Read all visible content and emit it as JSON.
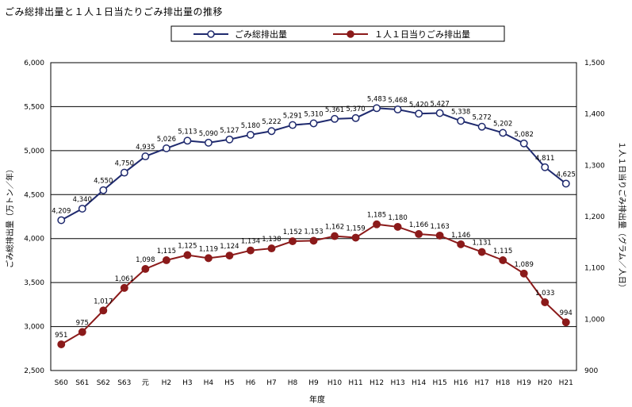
{
  "chart_data": {
    "type": "line",
    "title": "ごみ総排出量と１人１日当たりごみ排出量の推移",
    "xlabel": "年度",
    "ylabel_left": "ごみ総排出量（万トン／年）",
    "ylabel_right": "１人１日当りごみ排出量（グラム／人日）",
    "categories": [
      "S60",
      "S61",
      "S62",
      "S63",
      "元",
      "H2",
      "H3",
      "H4",
      "H5",
      "H6",
      "H7",
      "H8",
      "H9",
      "H10",
      "H11",
      "H12",
      "H13",
      "H14",
      "H15",
      "H16",
      "H17",
      "H18",
      "H19",
      "H20",
      "H21"
    ],
    "ylim_left": [
      2500,
      6000
    ],
    "ylim_right": [
      900,
      1500
    ],
    "yticks_left": [
      "2,500",
      "3,000",
      "3,500",
      "4,000",
      "4,500",
      "5,000",
      "5,500",
      "6,000"
    ],
    "yticks_right": [
      "900",
      "1,000",
      "1,100",
      "1,200",
      "1,300",
      "1,400",
      "1,500"
    ],
    "grid_lines_left": [
      3000,
      3500,
      4000,
      4500,
      5000,
      5500
    ],
    "legend_position": "top-center",
    "series": [
      {
        "name": "ごみ総排出量",
        "axis": "left",
        "marker": "open-circle",
        "color": "#1f2a6e",
        "values": [
          4209,
          4340,
          4550,
          4750,
          4935,
          5026,
          5113,
          5090,
          5127,
          5180,
          5222,
          5291,
          5310,
          5361,
          5370,
          5483,
          5468,
          5420,
          5427,
          5338,
          5272,
          5202,
          5082,
          4811,
          4625
        ],
        "labels": [
          "4,209",
          "4,340",
          "4,550",
          "4,750",
          "4,935",
          "5,026",
          "5,113",
          "5,090",
          "5,127",
          "5,180",
          "5,222",
          "5,291",
          "5,310",
          "5,361",
          "5,370",
          "5,483",
          "5,468",
          "5,420",
          "5,427",
          "5,338",
          "5,272",
          "5,202",
          "5,082",
          "4,811",
          "4,625"
        ]
      },
      {
        "name": "１人１日当りごみ排出量",
        "axis": "right",
        "marker": "filled-circle",
        "color": "#8b1a1a",
        "values": [
          951,
          975,
          1017,
          1061,
          1098,
          1115,
          1125,
          1119,
          1124,
          1134,
          1138,
          1152,
          1153,
          1162,
          1159,
          1185,
          1180,
          1166,
          1163,
          1146,
          1131,
          1115,
          1089,
          1033,
          994
        ],
        "labels": [
          "951",
          "975",
          "1,017",
          "1,061",
          "1,098",
          "1,115",
          "1,125",
          "1,119",
          "1,124",
          "1,134",
          "1,138",
          "1,152",
          "1,153",
          "1,162",
          "1,159",
          "1,185",
          "1,180",
          "1,166",
          "1,163",
          "1,146",
          "1,131",
          "1,115",
          "1,089",
          "1,033",
          "994"
        ]
      }
    ]
  }
}
